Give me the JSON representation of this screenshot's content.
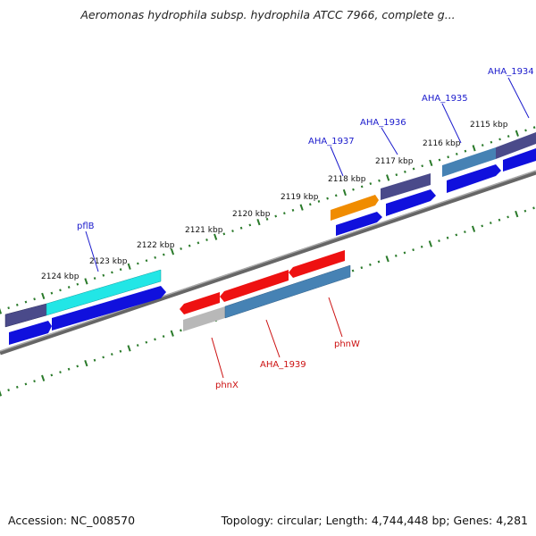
{
  "title": "Aeromonas hydrophila subsp. hydrophila ATCC 7966, complete g...",
  "footer": {
    "accession": "Accession: NC_008570",
    "stats": "Topology: circular; Length: 4,744,448 bp; Genes: 4,281"
  },
  "kbp_labels": [
    "2124 kbp",
    "2123 kbp",
    "2122 kbp",
    "2121 kbp",
    "2120 kbp",
    "2119 kbp",
    "2118 kbp",
    "2117 kbp",
    "2116 kbp",
    "2115 kbp"
  ],
  "gene_labels_top": [
    "pflB",
    "AHA_1937",
    "AHA_1936",
    "AHA_1935",
    "AHA_1934"
  ],
  "gene_labels_bottom": [
    "phnX",
    "AHA_1939",
    "phnW"
  ],
  "colors": {
    "top_label": "#1a1acc",
    "bottom_label": "#cc1111",
    "cyan": "#22e6e6",
    "navy": "#4a4a8a",
    "blue": "#1010dd",
    "red": "#ee1111",
    "steel": "#4682b4",
    "orange": "#f08c00",
    "gray": "#b8b8b8",
    "tick": "#2a7a2a"
  }
}
